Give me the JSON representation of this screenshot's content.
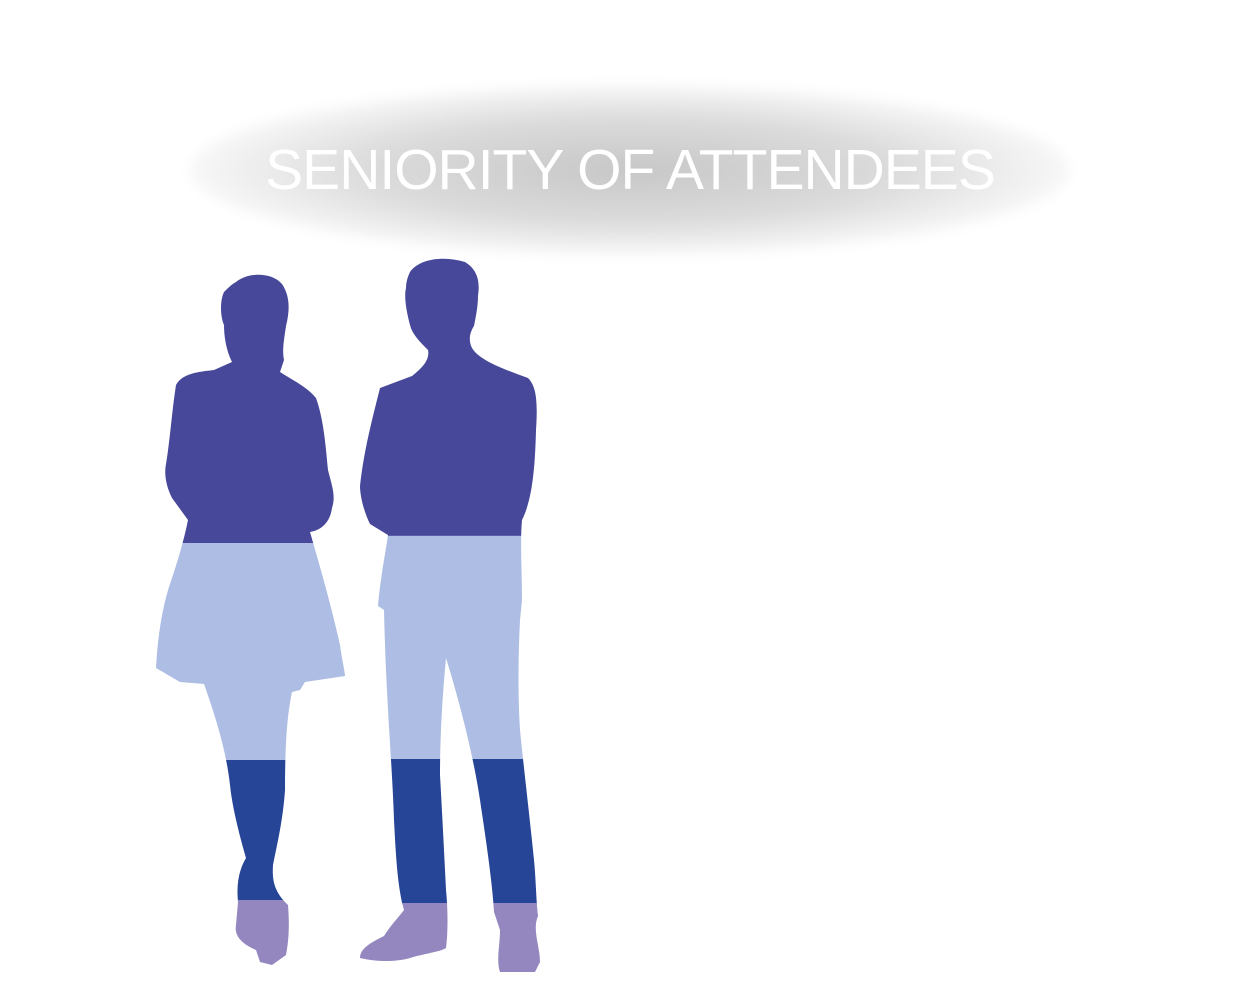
{
  "chart_data": {
    "type": "pictograph",
    "title": "SENIORITY OF ATTENDEES",
    "segments": [
      {
        "color": "#474899",
        "share": 0.39
      },
      {
        "color": "#adbde3",
        "share": 0.31
      },
      {
        "color": "#264596",
        "share": 0.2
      },
      {
        "color": "#9487c0",
        "share": 0.1
      }
    ],
    "figures": [
      "woman-silhouette",
      "man-silhouette"
    ],
    "legend": []
  }
}
